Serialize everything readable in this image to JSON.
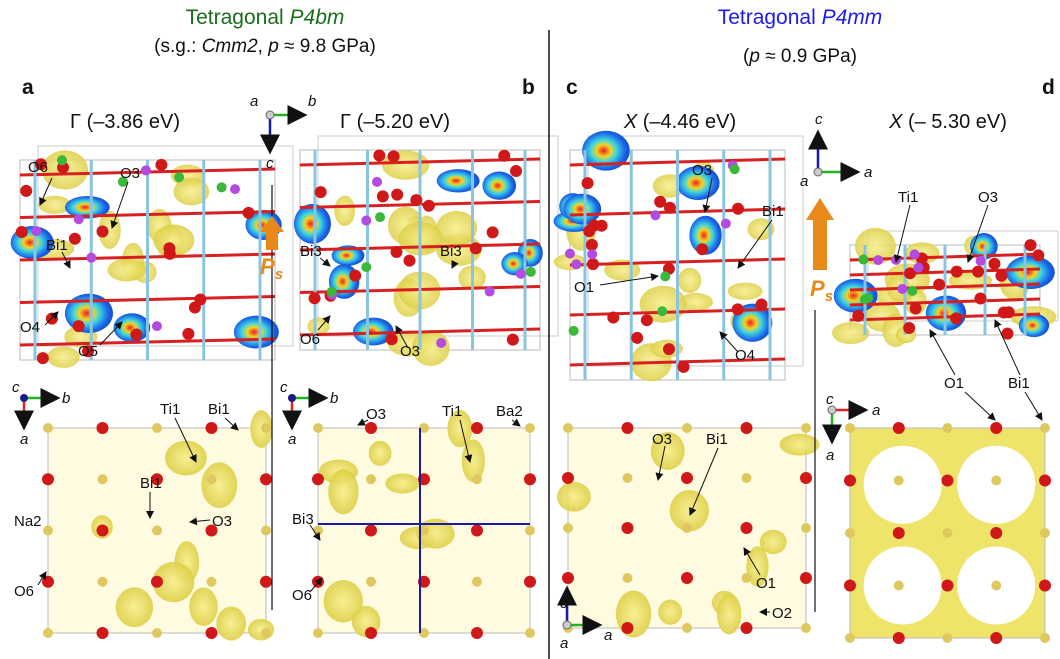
{
  "left_header": {
    "title": "Tetragonal",
    "group": "P4bm",
    "subtitle": [
      "(s.g.: ",
      "Cmm2",
      ", ",
      "p",
      " ≈ 9.8 GPa)"
    ]
  },
  "right_header": {
    "title": "Tetragonal",
    "group": "P4mm",
    "subtitle": [
      "(",
      "p",
      " ≈ 0.9 GPa)"
    ]
  },
  "panels": [
    {
      "letter": "a",
      "state": "Γ",
      "energy": "(–3.86 eV)",
      "top_labels": [
        "O6",
        "O3",
        "Bi1",
        "O4",
        "O5"
      ],
      "bottom_labels": [
        "Ti1",
        "Bi1",
        "Bi1",
        "Na2",
        "O3",
        "O6"
      ]
    },
    {
      "letter": "b",
      "state": "Γ",
      "energy": "(–5.20 eV)",
      "top_labels": [
        "Bi3",
        "Bi3",
        "O6",
        "O3"
      ],
      "bottom_labels": [
        "O3",
        "Ti1",
        "Ba2",
        "Bi3",
        "O6"
      ]
    },
    {
      "letter": "c",
      "state": "X",
      "energy": "(–4.46 eV)",
      "top_labels": [
        "O3",
        "Bi1",
        "O1",
        "O4"
      ],
      "bottom_labels": [
        "O3",
        "Bi1",
        "O1",
        "O2"
      ]
    },
    {
      "letter": "d",
      "state": "X",
      "energy": "(– 5.30 eV)",
      "top_labels": [
        "Ti1",
        "O3",
        "O1",
        "Bi1"
      ]
    }
  ],
  "axes": {
    "top_ab": [
      "a",
      "b",
      "c"
    ],
    "bottom_a": [
      "c",
      "b",
      "a"
    ],
    "bottom_b": [
      "c",
      "b",
      "a"
    ],
    "top_c": [
      "c",
      "a",
      "a"
    ],
    "bottom_c": [
      "c",
      "a",
      "a"
    ],
    "bottom_d": [
      "c",
      "a",
      "a"
    ]
  },
  "polarization": {
    "symbol": "P",
    "subscript": "s"
  }
}
